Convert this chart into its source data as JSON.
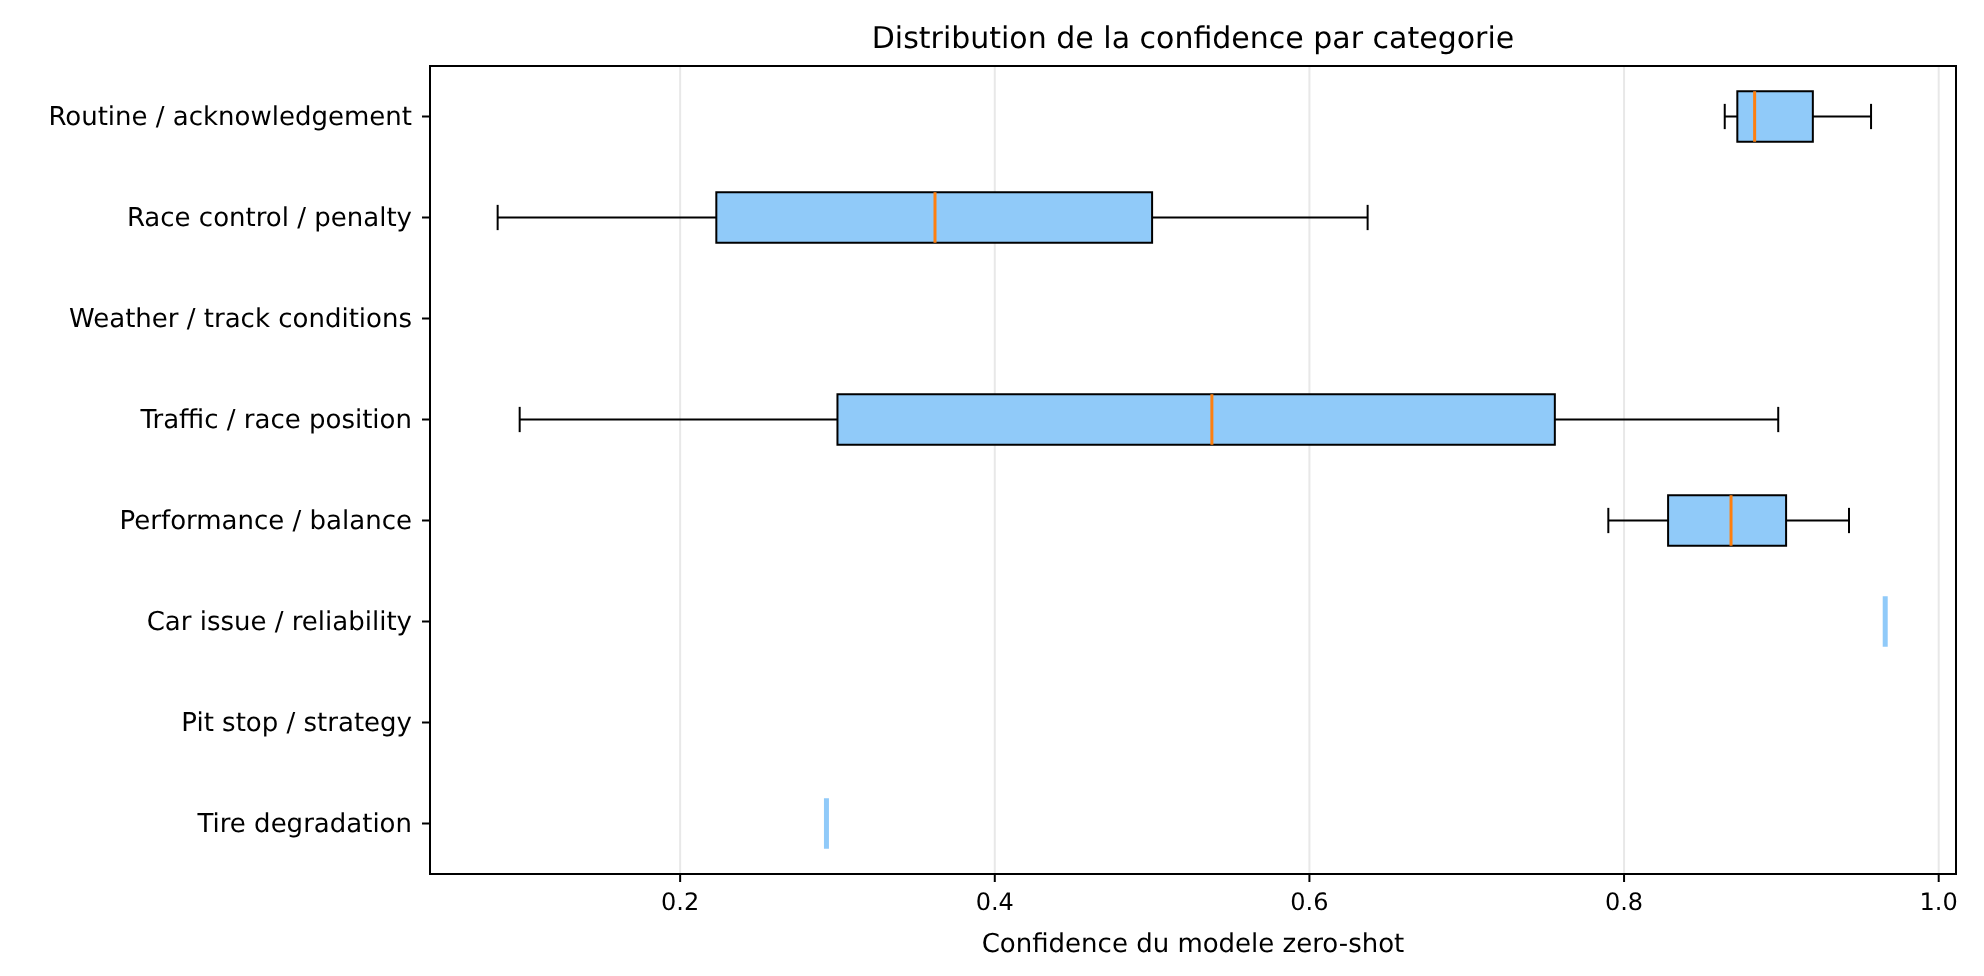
{
  "chart_data": {
    "type": "box",
    "title": "Distribution de la confidence par categorie",
    "xlabel": "Confidence du modele zero-shot",
    "orientation": "horizontal",
    "categories": [
      "Routine / acknowledgement",
      "Race control / penalty",
      "Weather / track conditions",
      "Traffic / race position",
      "Performance / balance",
      "Car issue / reliability",
      "Pit stop / strategy",
      "Tire degradation"
    ],
    "boxes": [
      {
        "low": 0.864,
        "q1": 0.872,
        "median": 0.883,
        "q3": 0.92,
        "high": 0.957
      },
      {
        "low": 0.084,
        "q1": 0.223,
        "median": 0.362,
        "q3": 0.5,
        "high": 0.637
      },
      null,
      {
        "low": 0.098,
        "q1": 0.3,
        "median": 0.538,
        "q3": 0.756,
        "high": 0.898
      },
      {
        "low": 0.79,
        "q1": 0.828,
        "median": 0.868,
        "q3": 0.903,
        "high": 0.943
      },
      {
        "low": 0.966,
        "q1": 0.966,
        "median": 0.966,
        "q3": 0.966,
        "high": 0.966
      },
      null,
      {
        "low": 0.293,
        "q1": 0.293,
        "median": 0.293,
        "q3": 0.293,
        "high": 0.293
      }
    ],
    "color": "#90caf9",
    "xlim": [
      0.041,
      1.011
    ],
    "xticks": [
      0.2,
      0.4,
      0.6,
      0.8,
      {
        "value": 1,
        "label": "1.0"
      }
    ],
    "grid": "x"
  }
}
